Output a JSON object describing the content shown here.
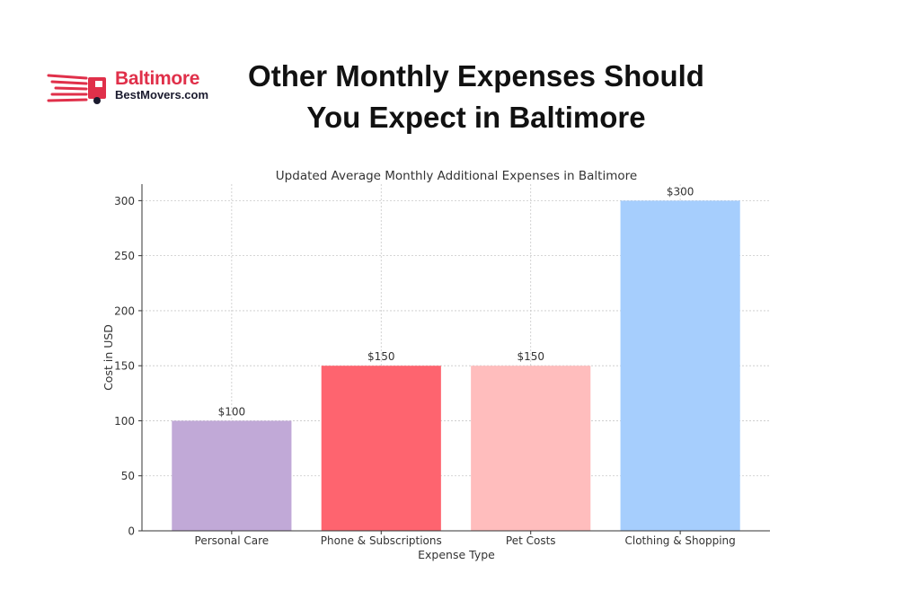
{
  "logo": {
    "brand": "Baltimore",
    "sub": "BestMovers.com",
    "icon": "moving-truck-icon",
    "accent_color": "#e0304a"
  },
  "headline": {
    "line1": "Other Monthly Expenses Should",
    "line2": "You Expect in Baltimore"
  },
  "chart_data": {
    "type": "bar",
    "title": "Updated Average Monthly Additional Expenses in Baltimore",
    "xlabel": "Expense Type",
    "ylabel": "Cost in USD",
    "categories": [
      "Personal Care",
      "Phone & Subscriptions",
      "Pet Costs",
      "Clothing & Shopping"
    ],
    "values": [
      100,
      150,
      150,
      300
    ],
    "data_labels": [
      "$100",
      "$150",
      "$150",
      "$300"
    ],
    "colors": [
      "#c1a9d7",
      "#fe646f",
      "#ffbdbd",
      "#a6cefd"
    ],
    "yticks": [
      0,
      50,
      100,
      150,
      200,
      250,
      300
    ],
    "ylim": [
      0,
      315
    ],
    "grid": true,
    "grid_style": "dashed"
  }
}
